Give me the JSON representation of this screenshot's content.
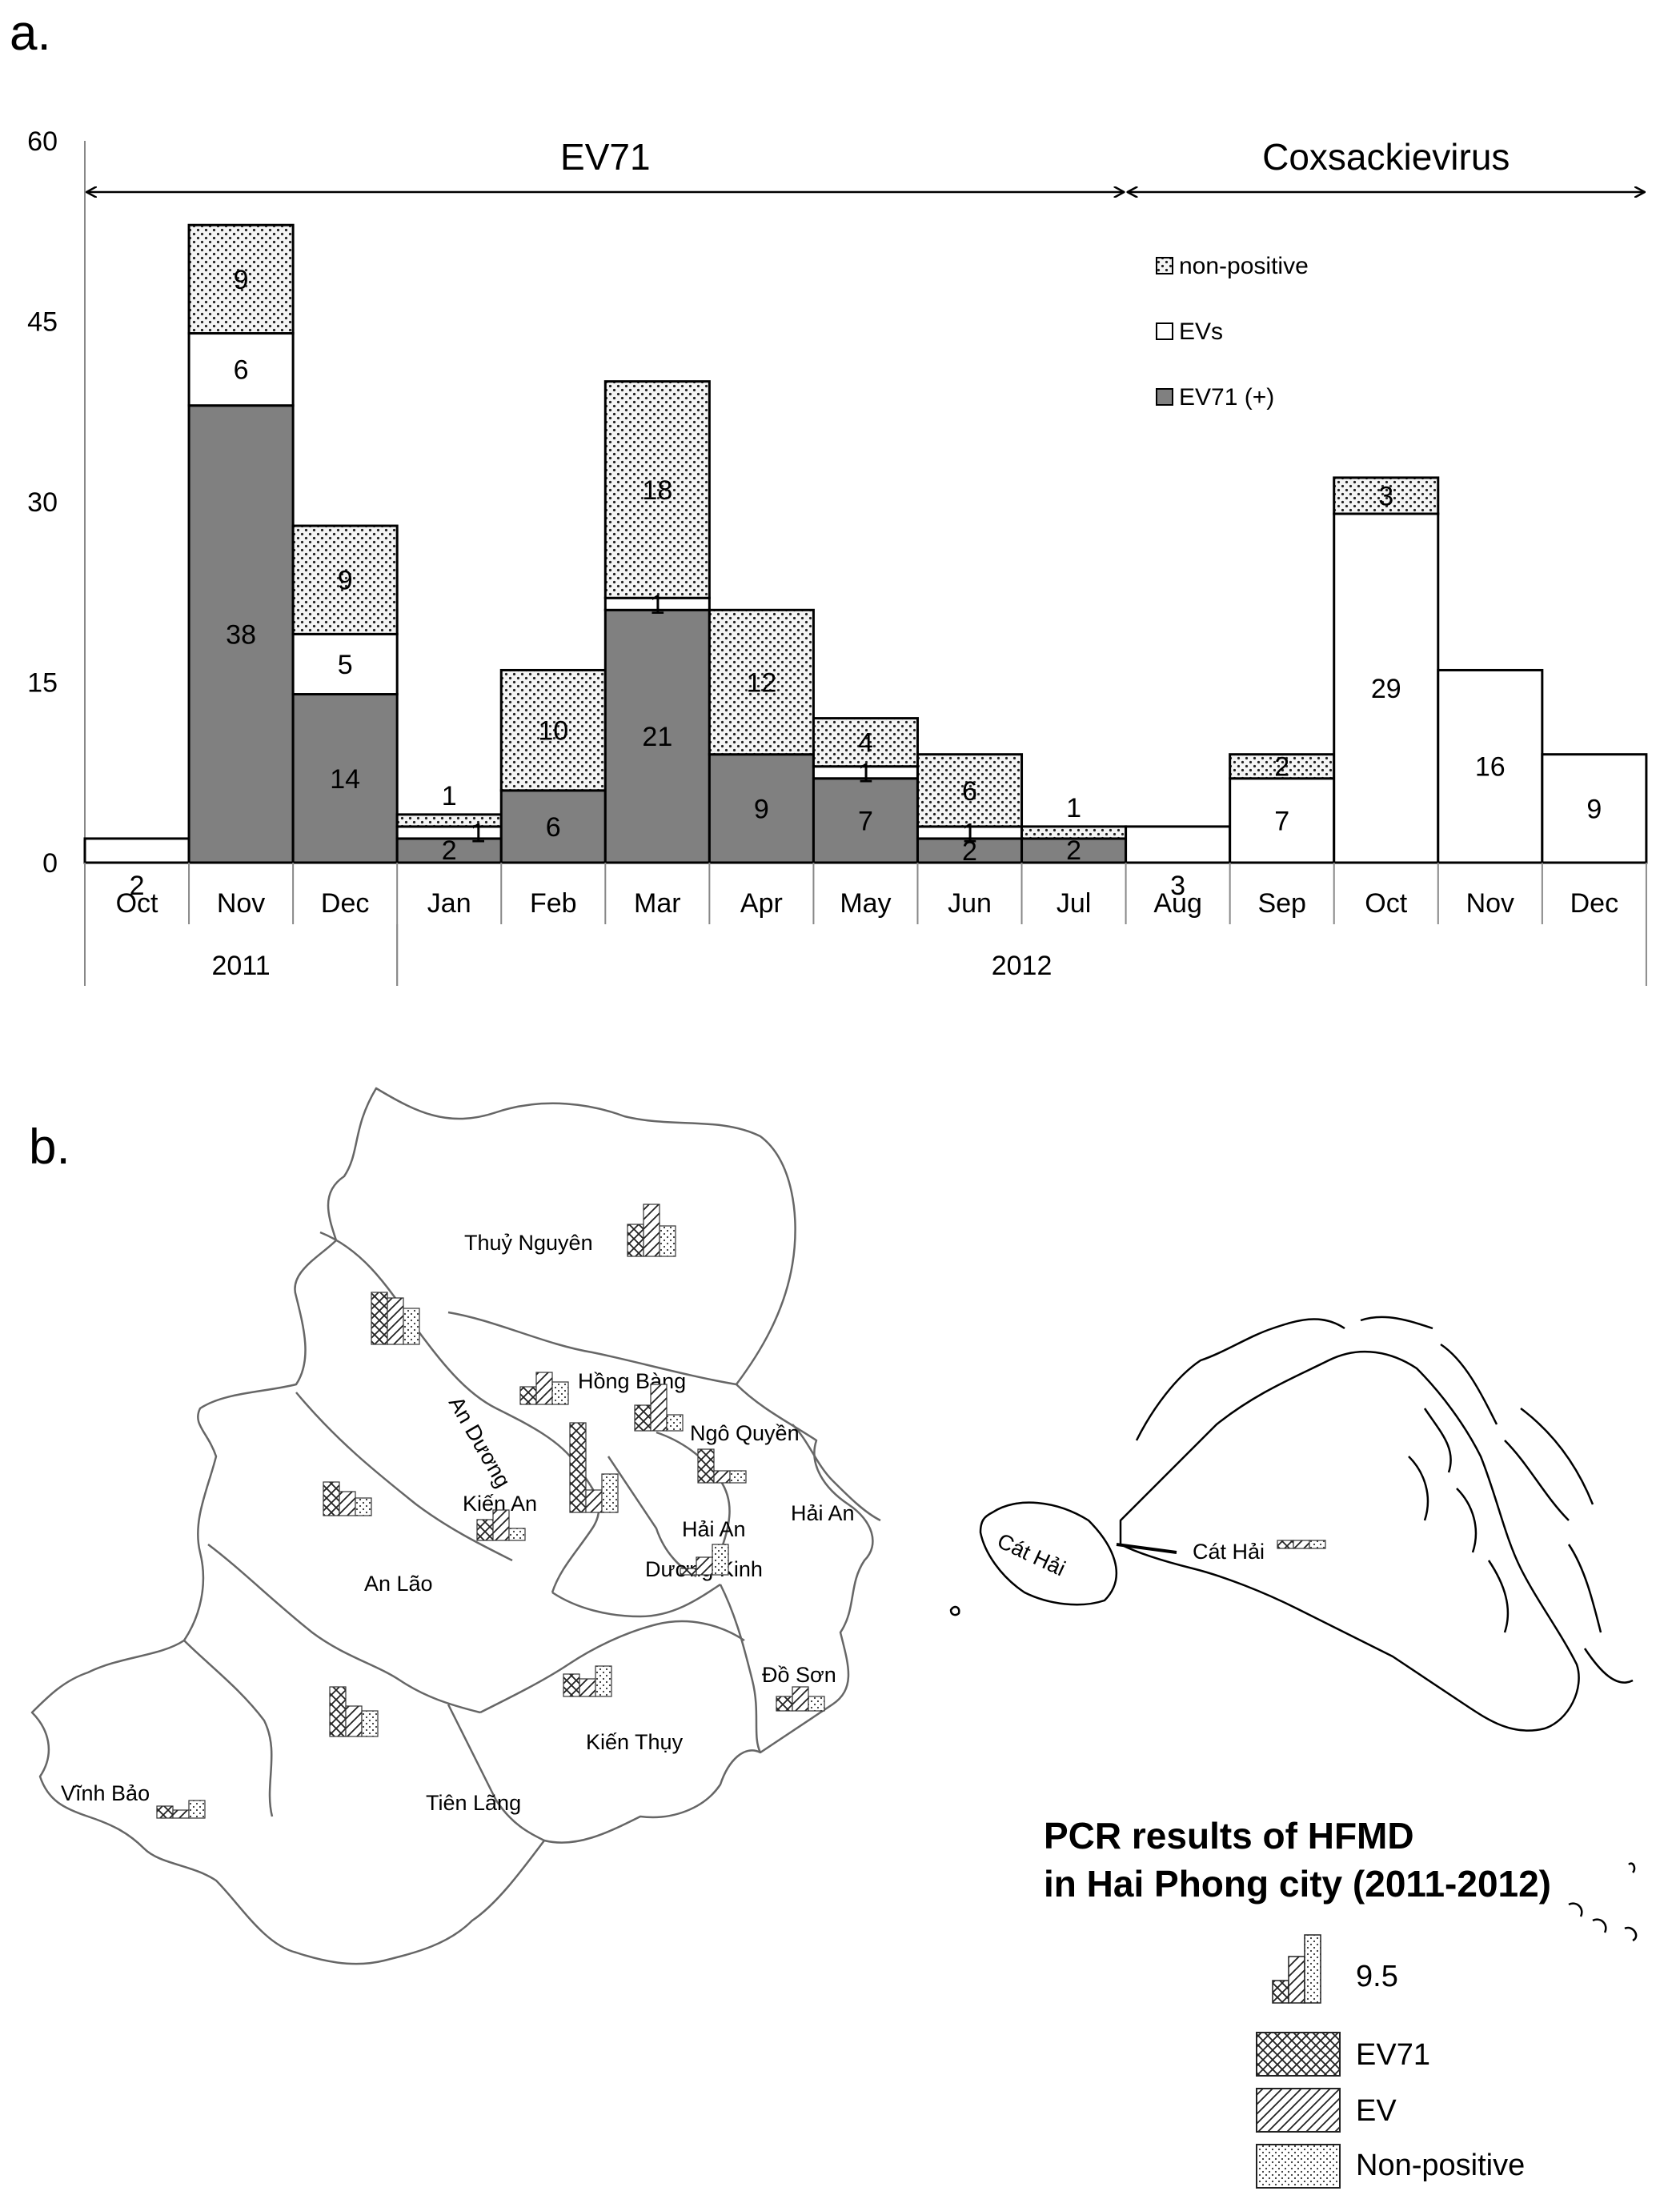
{
  "panel_a": {
    "label": "a."
  },
  "panel_b": {
    "label": "b."
  },
  "chart_data": {
    "type": "bar",
    "stacked": true,
    "categories": [
      "Oct",
      "Nov",
      "Dec",
      "Jan",
      "Feb",
      "Mar",
      "Apr",
      "May",
      "Jun",
      "Jul",
      "Aug",
      "Sep",
      "Oct",
      "Nov",
      "Dec"
    ],
    "year_groups": [
      {
        "label": "2011",
        "start": 0,
        "end": 2
      },
      {
        "label": "2012",
        "start": 3,
        "end": 14
      }
    ],
    "series": [
      {
        "name": "EV71 (+)",
        "key": "ev71",
        "fill": "#808080",
        "values": [
          0,
          38,
          14,
          2,
          6,
          21,
          9,
          7,
          2,
          2,
          0,
          0,
          0,
          0,
          0
        ]
      },
      {
        "name": "EVs",
        "key": "evs",
        "fill": "#ffffff",
        "values": [
          2,
          6,
          5,
          1,
          0,
          1,
          0,
          1,
          1,
          0,
          3,
          7,
          29,
          16,
          9
        ]
      },
      {
        "name": "non-positive",
        "key": "nonpos",
        "fill": "dots",
        "values": [
          0,
          9,
          9,
          1,
          10,
          18,
          12,
          4,
          6,
          1,
          0,
          2,
          3,
          0,
          0
        ]
      }
    ],
    "ylim": [
      0,
      60
    ],
    "yticks": [
      0,
      15,
      30,
      45,
      60
    ],
    "bands": [
      {
        "label": "EV71",
        "start": 0,
        "end": 10
      },
      {
        "label": "Coxsackievirus",
        "start": 10,
        "end": 15
      }
    ],
    "legend_placement": "top-right",
    "grid": false
  },
  "map": {
    "districts": [
      {
        "id": "thuy-nguyen",
        "name": "Thuỷ Nguyên"
      },
      {
        "id": "hong-bang",
        "name": "Hồng Bàng"
      },
      {
        "id": "an-duong",
        "name": "An Dương"
      },
      {
        "id": "ngo-quyen",
        "name": "Ngô Quyền"
      },
      {
        "id": "kien-an",
        "name": "Kiến An"
      },
      {
        "id": "hai-an-1",
        "name": "Hải An"
      },
      {
        "id": "hai-an-2",
        "name": "Hải An"
      },
      {
        "id": "an-lao",
        "name": "An Lão"
      },
      {
        "id": "duong-kinh",
        "name": "Dương Kinh"
      },
      {
        "id": "do-son",
        "name": "Đồ Sơn"
      },
      {
        "id": "kien-thuy",
        "name": "Kiến Thụy"
      },
      {
        "id": "tien-lang",
        "name": "Tiên Lãng"
      },
      {
        "id": "vinh-bao",
        "name": "Vĩnh Bảo"
      },
      {
        "id": "cat-hai-1",
        "name": "Cát Hải"
      },
      {
        "id": "cat-hai-2",
        "name": "Cát Hải"
      }
    ],
    "title_lines": [
      "PCR results of HFMD",
      "in Hai Phong city (2011-2012)"
    ],
    "legend": {
      "scale_value": "9.5",
      "items": [
        {
          "key": "ev71",
          "label": "EV71",
          "pattern": "crosshatch"
        },
        {
          "key": "ev",
          "label": "EV",
          "pattern": "diagonal"
        },
        {
          "key": "nonpos",
          "label": "Non-positive",
          "pattern": "dots"
        }
      ]
    }
  }
}
